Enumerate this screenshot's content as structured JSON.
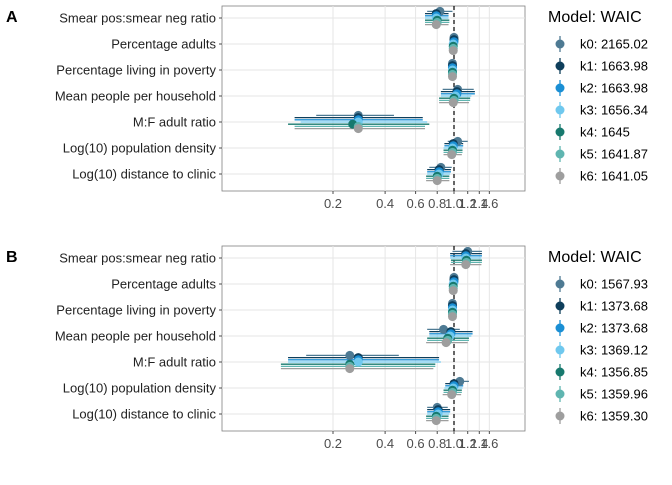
{
  "chart_data": [
    {
      "panel": "A",
      "type": "forest",
      "x_scale": "log",
      "reference_line": 1.0,
      "y_categories": [
        "Smear pos:smear neg ratio",
        "Percentage adults",
        "Percentage living in poverty",
        "Mean people per household",
        "M:F adult ratio",
        "Log(10) population density",
        "Log(10) distance to clinic"
      ],
      "x_ticks": [
        "0.2",
        "0.4",
        "0.6",
        "0.8",
        "1.0",
        "1.2",
        "1.4",
        "1.6"
      ],
      "legend_title": "Model: WAIC",
      "series": [
        {
          "key": "k0",
          "label": "k0: 2165.02",
          "color": "#4e7a93",
          "est": [
            0.83,
            1.0,
            0.98,
            1.05,
            0.28,
            1.05,
            0.84
          ],
          "lo": [
            0.7,
            0.97,
            0.95,
            0.86,
            0.16,
            0.92,
            0.72
          ],
          "hi": [
            0.98,
            1.04,
            1.02,
            1.3,
            0.45,
            1.2,
            0.97
          ]
        },
        {
          "key": "k1",
          "label": "k1: 1663.98",
          "color": "#0e3e5b",
          "est": [
            0.79,
            1.0,
            0.98,
            1.04,
            0.28,
            0.99,
            0.82
          ],
          "lo": [
            0.68,
            0.97,
            0.95,
            0.84,
            0.12,
            0.88,
            0.7
          ],
          "hi": [
            0.93,
            1.03,
            1.01,
            1.32,
            0.66,
            1.13,
            0.96
          ]
        },
        {
          "key": "k2",
          "label": "k2: 1663.98",
          "color": "#1a8fd4",
          "est": [
            0.79,
            1.0,
            0.98,
            1.04,
            0.28,
            0.99,
            0.82
          ],
          "lo": [
            0.68,
            0.97,
            0.95,
            0.84,
            0.12,
            0.88,
            0.7
          ],
          "hi": [
            0.93,
            1.03,
            1.01,
            1.32,
            0.66,
            1.13,
            0.96
          ]
        },
        {
          "key": "k3",
          "label": "k3: 1656.34",
          "color": "#6fc8ee",
          "est": [
            0.79,
            0.99,
            0.98,
            1.02,
            0.28,
            0.98,
            0.82
          ],
          "lo": [
            0.68,
            0.96,
            0.95,
            0.84,
            0.13,
            0.87,
            0.7
          ],
          "hi": [
            0.93,
            1.02,
            1.01,
            1.26,
            0.7,
            1.12,
            0.95
          ]
        },
        {
          "key": "k4",
          "label": "k4: 1645",
          "color": "#17796e",
          "est": [
            0.8,
            0.99,
            0.98,
            1.0,
            0.26,
            0.98,
            0.8
          ],
          "lo": [
            0.68,
            0.96,
            0.95,
            0.82,
            0.11,
            0.87,
            0.69
          ],
          "hi": [
            0.94,
            1.02,
            1.01,
            1.24,
            0.72,
            1.12,
            0.94
          ]
        },
        {
          "key": "k5",
          "label": "k5: 1641.87",
          "color": "#5fb5b0",
          "est": [
            0.8,
            0.99,
            0.98,
            1.0,
            0.28,
            0.98,
            0.8
          ],
          "lo": [
            0.68,
            0.96,
            0.95,
            0.82,
            0.12,
            0.87,
            0.69
          ],
          "hi": [
            0.94,
            1.02,
            1.01,
            1.24,
            0.68,
            1.12,
            0.94
          ]
        },
        {
          "key": "k6",
          "label": "k6: 1641.05",
          "color": "#9e9e9e",
          "est": [
            0.79,
            0.99,
            0.98,
            0.99,
            0.28,
            0.97,
            0.8
          ],
          "lo": [
            0.68,
            0.96,
            0.95,
            0.82,
            0.12,
            0.87,
            0.69
          ],
          "hi": [
            0.93,
            1.02,
            1.01,
            1.22,
            0.68,
            1.11,
            0.94
          ]
        }
      ]
    },
    {
      "panel": "B",
      "type": "forest",
      "x_scale": "log",
      "reference_line": 1.0,
      "y_categories": [
        "Smear pos:smear neg ratio",
        "Percentage adults",
        "Percentage living in poverty",
        "Mean people per household",
        "M:F adult ratio",
        "Log(10) population density",
        "Log(10) distance to clinic"
      ],
      "x_ticks": [
        "0.2",
        "0.4",
        "0.6",
        "0.8",
        "1.0",
        "1.2",
        "1.4",
        "1.6"
      ],
      "legend_title": "Model: WAIC",
      "series": [
        {
          "key": "k0",
          "label": "k0: 1567.93",
          "color": "#4e7a93",
          "est": [
            1.2,
            1.0,
            0.98,
            0.87,
            0.25,
            1.08,
            0.8
          ],
          "lo": [
            0.98,
            0.97,
            0.95,
            0.7,
            0.14,
            0.96,
            0.7
          ],
          "hi": [
            1.45,
            1.03,
            1.01,
            1.08,
            0.48,
            1.22,
            0.92
          ]
        },
        {
          "key": "k1",
          "label": "k1: 1373.68",
          "color": "#0e3e5b",
          "est": [
            1.17,
            1.0,
            0.98,
            0.96,
            0.28,
            1.0,
            0.81
          ],
          "lo": [
            0.95,
            0.97,
            0.95,
            0.72,
            0.11,
            0.89,
            0.7
          ],
          "hi": [
            1.45,
            1.03,
            1.01,
            1.28,
            0.82,
            1.13,
            0.95
          ]
        },
        {
          "key": "k2",
          "label": "k2: 1373.68",
          "color": "#1a8fd4",
          "est": [
            1.17,
            1.0,
            0.98,
            0.96,
            0.28,
            1.0,
            0.81
          ],
          "lo": [
            0.95,
            0.97,
            0.95,
            0.72,
            0.11,
            0.89,
            0.7
          ],
          "hi": [
            1.45,
            1.03,
            1.01,
            1.28,
            0.82,
            1.13,
            0.95
          ]
        },
        {
          "key": "k3",
          "label": "k3: 1369.12",
          "color": "#6fc8ee",
          "est": [
            1.17,
            0.99,
            0.98,
            0.95,
            0.28,
            0.99,
            0.81
          ],
          "lo": [
            0.95,
            0.96,
            0.95,
            0.72,
            0.11,
            0.88,
            0.7
          ],
          "hi": [
            1.44,
            1.02,
            1.01,
            1.26,
            0.84,
            1.12,
            0.94
          ]
        },
        {
          "key": "k4",
          "label": "k4: 1356.85",
          "color": "#17796e",
          "est": [
            1.18,
            0.99,
            0.98,
            0.92,
            0.25,
            0.98,
            0.79
          ],
          "lo": [
            0.96,
            0.96,
            0.95,
            0.7,
            0.1,
            0.87,
            0.69
          ],
          "hi": [
            1.45,
            1.02,
            1.01,
            1.22,
            0.78,
            1.11,
            0.93
          ]
        },
        {
          "key": "k5",
          "label": "k5: 1359.96",
          "color": "#5fb5b0",
          "est": [
            1.18,
            0.99,
            0.98,
            0.92,
            0.25,
            0.98,
            0.79
          ],
          "lo": [
            0.96,
            0.96,
            0.95,
            0.7,
            0.1,
            0.87,
            0.69
          ],
          "hi": [
            1.45,
            1.02,
            1.01,
            1.22,
            0.78,
            1.11,
            0.93
          ]
        },
        {
          "key": "k6",
          "label": "k6: 1359.30",
          "color": "#9e9e9e",
          "est": [
            1.17,
            0.99,
            0.98,
            0.9,
            0.25,
            0.97,
            0.79
          ],
          "lo": [
            0.95,
            0.96,
            0.95,
            0.69,
            0.1,
            0.86,
            0.69
          ],
          "hi": [
            1.44,
            1.02,
            1.01,
            1.2,
            0.76,
            1.1,
            0.93
          ]
        }
      ]
    }
  ]
}
